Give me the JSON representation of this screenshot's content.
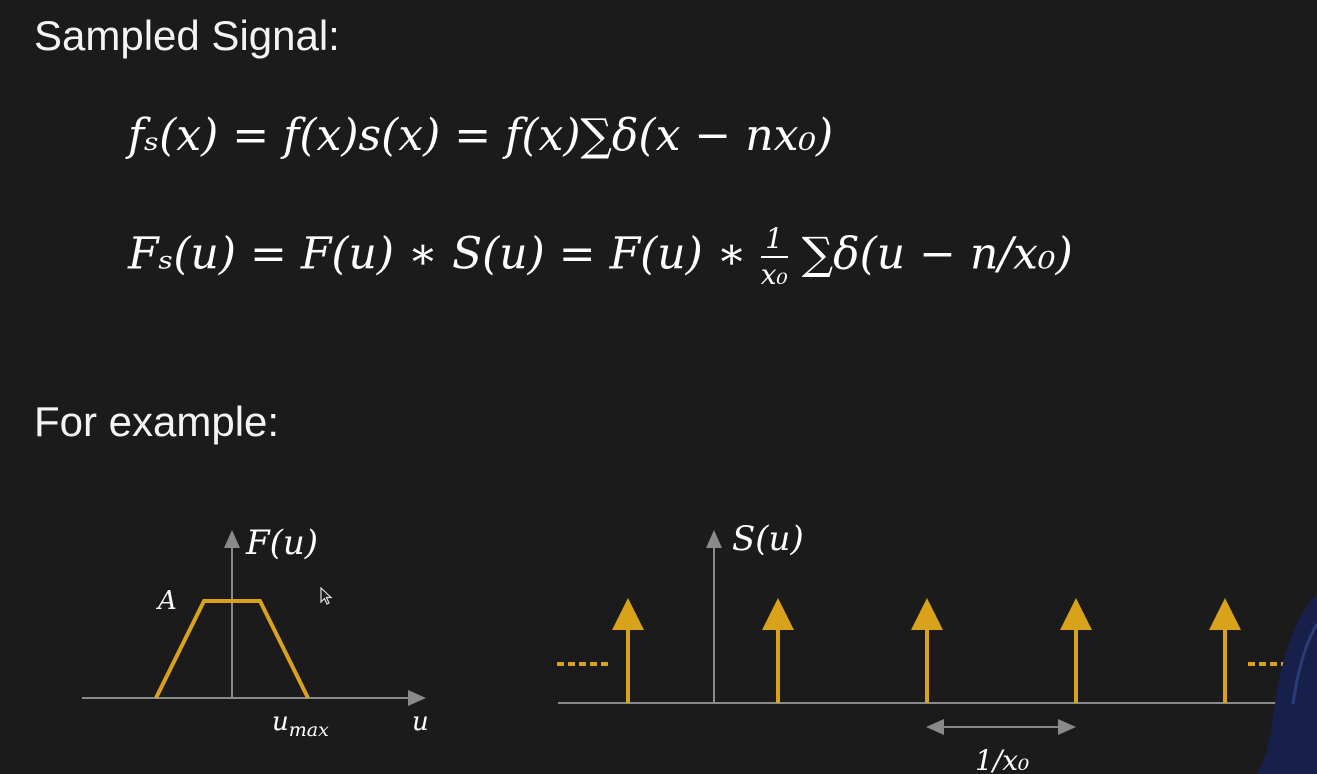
{
  "headings": {
    "sampled_signal": "Sampled Signal:",
    "for_example": "For example:"
  },
  "equations": {
    "fs_x": "fₛ(x) = f(x)s(x) = f(x)∑δ(x − nx₀)",
    "Fs_u_left": "Fₛ(u) = F(u) ∗ S(u) = F(u) ∗",
    "Fs_u_frac_num": "1",
    "Fs_u_frac_den": "x₀",
    "Fs_u_right": "∑δ(u − n/x₀)"
  },
  "plot_F": {
    "axis_label": "F(u)",
    "amplitude_label": "A",
    "umax_label": "u",
    "umax_sub": "max",
    "x_label": "u"
  },
  "plot_S": {
    "axis_label": "S(u)",
    "spacing_label": "1/x₀"
  },
  "colors": {
    "accent": "#d9a21b",
    "axis": "#8a8a8a",
    "text": "#ffffff",
    "background": "#1b1b1b"
  }
}
